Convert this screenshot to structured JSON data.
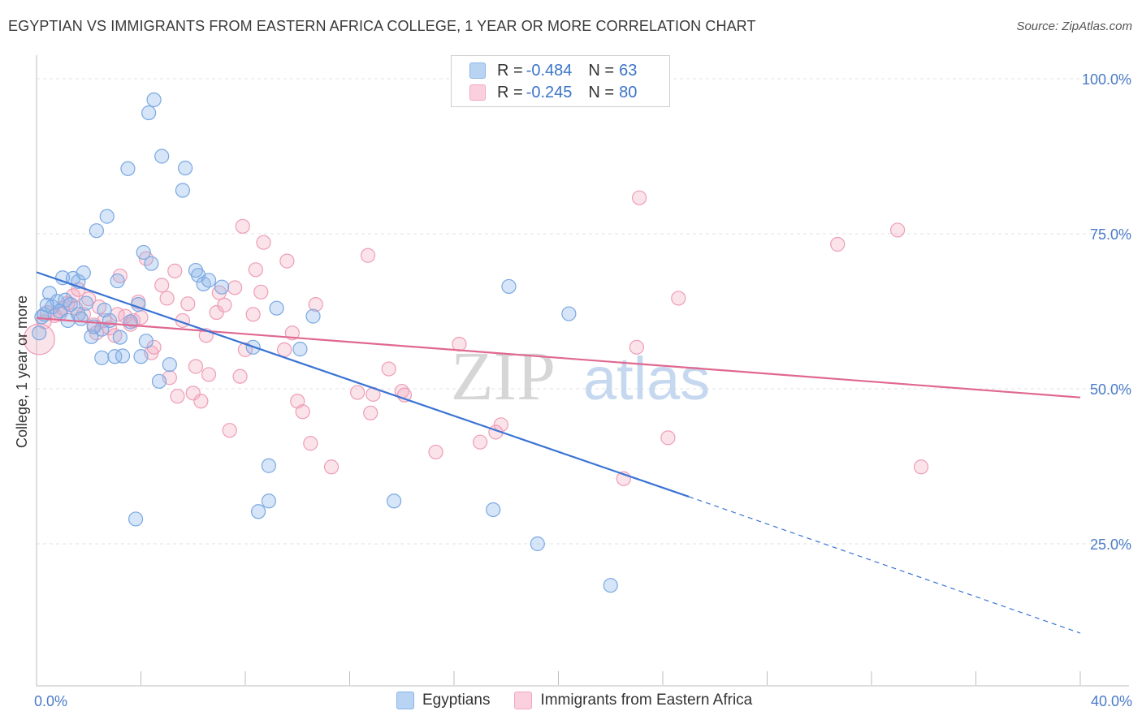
{
  "header": {
    "title": "EGYPTIAN VS IMMIGRANTS FROM EASTERN AFRICA COLLEGE, 1 YEAR OR MORE CORRELATION CHART",
    "source": "Source: ZipAtlas.com"
  },
  "legend": {
    "rows": [
      {
        "r_label": "R = ",
        "r_value": "-0.484",
        "n_label": "N = ",
        "n_value": "63"
      },
      {
        "r_label": "R = ",
        "r_value": "-0.245",
        "n_label": "N = ",
        "n_value": "80"
      }
    ]
  },
  "bottom_legend": [
    "Egyptians",
    "Immigrants from Eastern Africa"
  ],
  "watermark": {
    "zip": "ZIP",
    "atlas": "atlas"
  },
  "chart_data": {
    "type": "scatter",
    "title": "EGYPTIAN VS IMMIGRANTS FROM EASTERN AFRICA COLLEGE, 1 YEAR OR MORE CORRELATION CHART",
    "xlabel": "",
    "ylabel": "College, 1 year or more",
    "xlim": [
      0,
      40
    ],
    "ylim": [
      0,
      105
    ],
    "x_tick_labels": [
      "0.0%",
      "40.0%"
    ],
    "y_ticks": [
      25,
      50,
      75,
      100
    ],
    "y_tick_labels": [
      "25.0%",
      "50.0%",
      "75.0%",
      "100.0%"
    ],
    "grid": true,
    "colors": {
      "Egyptians": "#8ab4e8",
      "Immigrants from Eastern Africa": "#f2a7bf",
      "blue_line": "#3b74d4",
      "pink_line": "#e06890"
    },
    "series": [
      {
        "name": "Egyptians",
        "r": -0.484,
        "n": 63,
        "trend": {
          "x0": 0,
          "y0": 68.8,
          "x1": 25,
          "y1": 32.6,
          "dash_to_x": 40,
          "dash_to_y": 10.6
        },
        "points": [
          [
            0.2,
            61.6
          ],
          [
            0.5,
            65.4
          ],
          [
            0.6,
            63.2
          ],
          [
            0.8,
            64.1
          ],
          [
            0.9,
            62.5
          ],
          [
            1.0,
            67.9
          ],
          [
            1.1,
            64.3
          ],
          [
            1.3,
            63.6
          ],
          [
            1.4,
            67.8
          ],
          [
            1.6,
            62.0
          ],
          [
            1.6,
            67.3
          ],
          [
            1.7,
            61.3
          ],
          [
            1.8,
            68.7
          ],
          [
            1.9,
            63.8
          ],
          [
            2.1,
            58.4
          ],
          [
            2.3,
            75.5
          ],
          [
            2.5,
            59.6
          ],
          [
            2.5,
            55.0
          ],
          [
            2.6,
            62.7
          ],
          [
            2.7,
            77.8
          ],
          [
            2.8,
            61.0
          ],
          [
            3.0,
            55.2
          ],
          [
            3.1,
            67.4
          ],
          [
            3.2,
            58.3
          ],
          [
            3.3,
            55.3
          ],
          [
            3.5,
            85.5
          ],
          [
            3.6,
            60.8
          ],
          [
            3.8,
            29.0
          ],
          [
            3.9,
            63.6
          ],
          [
            4.0,
            55.2
          ],
          [
            4.1,
            72.0
          ],
          [
            4.2,
            57.7
          ],
          [
            4.3,
            94.5
          ],
          [
            4.4,
            70.2
          ],
          [
            4.5,
            96.6
          ],
          [
            4.7,
            51.2
          ],
          [
            4.8,
            87.5
          ],
          [
            5.1,
            53.9
          ],
          [
            5.6,
            82.0
          ],
          [
            5.7,
            85.6
          ],
          [
            6.1,
            69.1
          ],
          [
            6.2,
            68.3
          ],
          [
            6.4,
            66.9
          ],
          [
            6.6,
            67.5
          ],
          [
            7.1,
            66.4
          ],
          [
            8.3,
            56.7
          ],
          [
            8.5,
            30.2
          ],
          [
            8.9,
            31.9
          ],
          [
            8.9,
            37.6
          ],
          [
            9.2,
            63.0
          ],
          [
            10.1,
            56.4
          ],
          [
            10.6,
            61.7
          ],
          [
            13.7,
            31.9
          ],
          [
            17.5,
            30.5
          ],
          [
            18.1,
            66.5
          ],
          [
            19.2,
            25.0
          ],
          [
            20.4,
            62.1
          ],
          [
            22.0,
            18.3
          ],
          [
            0.1,
            59.0
          ],
          [
            0.3,
            62.0
          ],
          [
            1.2,
            61.0
          ],
          [
            2.2,
            60.0
          ],
          [
            0.4,
            63.5
          ]
        ]
      },
      {
        "name": "Immigrants from Eastern Africa",
        "r": -0.245,
        "n": 80,
        "trend": {
          "x0": 0,
          "y0": 61.4,
          "x1": 40,
          "y1": 48.6
        },
        "points": [
          [
            0.1,
            58.0
          ],
          [
            0.4,
            62.3
          ],
          [
            0.7,
            61.8
          ],
          [
            0.9,
            62.1
          ],
          [
            1.0,
            63.0
          ],
          [
            1.2,
            63.8
          ],
          [
            1.4,
            65.0
          ],
          [
            1.6,
            66.0
          ],
          [
            1.8,
            62.0
          ],
          [
            2.0,
            64.5
          ],
          [
            2.2,
            60.3
          ],
          [
            2.3,
            59.0
          ],
          [
            2.4,
            63.2
          ],
          [
            2.6,
            61.0
          ],
          [
            2.8,
            59.8
          ],
          [
            3.0,
            58.6
          ],
          [
            3.1,
            62.0
          ],
          [
            3.2,
            68.2
          ],
          [
            3.4,
            61.7
          ],
          [
            3.6,
            60.4
          ],
          [
            3.7,
            61.0
          ],
          [
            3.9,
            64.0
          ],
          [
            4.0,
            61.5
          ],
          [
            4.2,
            71.0
          ],
          [
            4.4,
            55.8
          ],
          [
            4.5,
            56.7
          ],
          [
            4.8,
            66.7
          ],
          [
            5.0,
            64.6
          ],
          [
            5.1,
            51.8
          ],
          [
            5.3,
            69.0
          ],
          [
            5.4,
            48.8
          ],
          [
            5.6,
            61.0
          ],
          [
            5.8,
            63.7
          ],
          [
            6.0,
            49.3
          ],
          [
            6.1,
            53.6
          ],
          [
            6.3,
            48.0
          ],
          [
            6.5,
            58.6
          ],
          [
            6.6,
            52.3
          ],
          [
            6.9,
            62.3
          ],
          [
            7.0,
            65.5
          ],
          [
            7.2,
            63.5
          ],
          [
            7.4,
            43.3
          ],
          [
            7.6,
            66.3
          ],
          [
            7.8,
            52.0
          ],
          [
            7.9,
            76.2
          ],
          [
            8.0,
            56.3
          ],
          [
            8.3,
            62.0
          ],
          [
            8.4,
            69.2
          ],
          [
            8.6,
            65.6
          ],
          [
            8.7,
            73.6
          ],
          [
            9.5,
            56.3
          ],
          [
            9.6,
            70.6
          ],
          [
            9.8,
            59.0
          ],
          [
            10.0,
            48.0
          ],
          [
            10.2,
            46.3
          ],
          [
            10.5,
            41.2
          ],
          [
            10.7,
            63.6
          ],
          [
            11.3,
            37.4
          ],
          [
            12.3,
            49.4
          ],
          [
            12.7,
            71.5
          ],
          [
            12.8,
            46.1
          ],
          [
            12.9,
            49.1
          ],
          [
            13.5,
            53.2
          ],
          [
            14.0,
            49.6
          ],
          [
            14.1,
            49.0
          ],
          [
            15.3,
            39.8
          ],
          [
            16.2,
            57.2
          ],
          [
            17.0,
            41.4
          ],
          [
            17.6,
            43.0
          ],
          [
            17.8,
            44.2
          ],
          [
            22.5,
            35.5
          ],
          [
            23.0,
            56.7
          ],
          [
            23.1,
            80.8
          ],
          [
            24.2,
            42.1
          ],
          [
            24.6,
            64.6
          ],
          [
            30.7,
            73.3
          ],
          [
            33.0,
            75.6
          ],
          [
            33.9,
            37.4
          ],
          [
            0.3,
            60.8
          ],
          [
            1.5,
            63.0
          ]
        ]
      }
    ]
  }
}
